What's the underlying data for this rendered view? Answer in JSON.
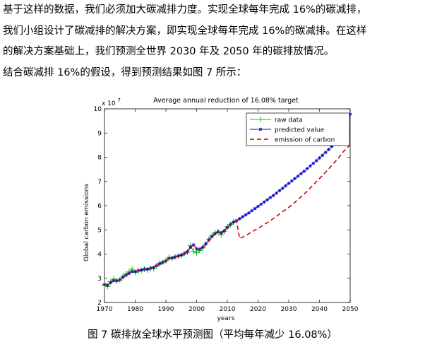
{
  "paragraph": {
    "lines": [
      "基于这样的数据，我们必须加大碳减排力度。实现全球每年完成 16%的碳减排，",
      "我们小组设计了碳减排的解决方案，即实现全球每年完成 16%的碳减排。在这样",
      "的解决方案基础上，我们预测全世界 2030 年及 2050 年的碳排放情况。",
      "结合碳减排 16%的假设，得到预测结果如图 7 所示："
    ]
  },
  "figure": {
    "caption": "图 7    碳排放全球水平预测图（平均每年减少 16.08%）"
  },
  "chart_data": {
    "type": "line",
    "title": "Average annual reduction of 16.08% target",
    "xlabel": "years",
    "ylabel": "Global carbon emissions",
    "y_multiplier_label": "x 10",
    "y_multiplier_exponent": "7",
    "xlim": [
      1970,
      2050
    ],
    "ylim": [
      2,
      10
    ],
    "xticks": [
      "1970",
      "1980",
      "1990",
      "2000",
      "2010",
      "2020",
      "2030",
      "2040",
      "2050"
    ],
    "yticks": [
      "2",
      "3",
      "4",
      "5",
      "6",
      "7",
      "8",
      "9",
      "10"
    ],
    "legend_position": "top-right",
    "series": [
      {
        "name": "raw data",
        "color": "#00cc00",
        "marker": "plus",
        "x": [
          1970,
          1971,
          1972,
          1973,
          1974,
          1975,
          1976,
          1977,
          1978,
          1979,
          1980,
          1981,
          1982,
          1983,
          1984,
          1985,
          1986,
          1987,
          1988,
          1989,
          1990,
          1991,
          1992,
          1993,
          1994,
          1995,
          1996,
          1997,
          1998,
          1999,
          2000,
          2001,
          2002,
          2003,
          2004,
          2005,
          2006,
          2007,
          2008,
          2009,
          2010,
          2011,
          2012
        ],
        "y": [
          2.72,
          2.66,
          2.86,
          2.97,
          2.88,
          2.93,
          3.09,
          3.18,
          3.26,
          3.38,
          3.24,
          3.3,
          3.32,
          3.38,
          3.34,
          3.4,
          3.4,
          3.52,
          3.62,
          3.66,
          3.72,
          3.86,
          3.82,
          3.88,
          3.92,
          3.94,
          4.02,
          4.08,
          4.35,
          4.12,
          4.05,
          4.15,
          4.26,
          4.42,
          4.62,
          4.77,
          4.88,
          4.92,
          4.79,
          4.94,
          5.12,
          5.22,
          5.32
        ]
      },
      {
        "name": "predicted value",
        "color": "#0000cc",
        "marker": "star",
        "x": [
          1970,
          1971,
          1972,
          1973,
          1974,
          1975,
          1976,
          1977,
          1978,
          1979,
          1980,
          1981,
          1982,
          1983,
          1984,
          1985,
          1986,
          1987,
          1988,
          1989,
          1990,
          1991,
          1992,
          1993,
          1994,
          1995,
          1996,
          1997,
          1998,
          1999,
          2000,
          2001,
          2002,
          2003,
          2004,
          2005,
          2006,
          2007,
          2008,
          2009,
          2010,
          2011,
          2012,
          2013,
          2014,
          2015,
          2016,
          2017,
          2018,
          2019,
          2020,
          2021,
          2022,
          2023,
          2024,
          2025,
          2026,
          2027,
          2028,
          2029,
          2030,
          2031,
          2032,
          2033,
          2034,
          2035,
          2036,
          2037,
          2038,
          2039,
          2040,
          2041,
          2042,
          2043,
          2044,
          2045,
          2046,
          2047,
          2048,
          2049,
          2050
        ],
        "y": [
          2.74,
          2.72,
          2.82,
          2.9,
          2.9,
          2.94,
          3.04,
          3.12,
          3.2,
          3.28,
          3.28,
          3.32,
          3.34,
          3.38,
          3.38,
          3.42,
          3.44,
          3.52,
          3.6,
          3.66,
          3.72,
          3.82,
          3.84,
          3.88,
          3.92,
          3.96,
          4.02,
          4.1,
          4.28,
          4.38,
          4.22,
          4.2,
          4.28,
          4.42,
          4.58,
          4.72,
          4.84,
          4.92,
          4.88,
          4.96,
          5.1,
          5.22,
          5.32,
          5.38,
          5.46,
          5.54,
          5.62,
          5.7,
          5.79,
          5.88,
          5.97,
          6.06,
          6.15,
          6.24,
          6.33,
          6.42,
          6.52,
          6.62,
          6.72,
          6.82,
          6.92,
          7.02,
          7.12,
          7.22,
          7.32,
          7.42,
          7.53,
          7.64,
          7.75,
          7.86,
          7.97,
          8.08,
          8.2,
          8.32,
          8.44,
          8.56,
          8.68,
          8.8,
          8.92,
          9.1,
          9.78
        ]
      },
      {
        "name": "emission of carbon",
        "color": "#cc0000",
        "marker": "dash",
        "x": [
          1970,
          1971,
          1972,
          1973,
          1974,
          1975,
          1976,
          1977,
          1978,
          1979,
          1980,
          1981,
          1982,
          1983,
          1984,
          1985,
          1986,
          1987,
          1988,
          1989,
          1990,
          1991,
          1992,
          1993,
          1994,
          1995,
          1996,
          1997,
          1998,
          1999,
          2000,
          2001,
          2002,
          2003,
          2004,
          2005,
          2006,
          2007,
          2008,
          2009,
          2010,
          2011,
          2012,
          2013,
          2014,
          2016,
          2018,
          2020,
          2022,
          2024,
          2026,
          2028,
          2030,
          2032,
          2034,
          2036,
          2038,
          2040,
          2042,
          2044,
          2046,
          2048,
          2050
        ],
        "y": [
          2.74,
          2.72,
          2.82,
          2.9,
          2.9,
          2.94,
          3.04,
          3.12,
          3.2,
          3.28,
          3.28,
          3.32,
          3.34,
          3.38,
          3.38,
          3.42,
          3.44,
          3.52,
          3.6,
          3.66,
          3.72,
          3.82,
          3.84,
          3.88,
          3.92,
          3.96,
          4.02,
          4.1,
          4.28,
          4.38,
          4.22,
          4.2,
          4.28,
          4.42,
          4.58,
          4.72,
          4.84,
          4.92,
          4.88,
          4.96,
          5.1,
          5.22,
          5.32,
          5.38,
          4.64,
          4.76,
          4.92,
          5.06,
          5.22,
          5.38,
          5.56,
          5.75,
          5.93,
          6.14,
          6.36,
          6.6,
          6.86,
          7.12,
          7.38,
          7.66,
          7.94,
          8.26,
          8.52
        ]
      }
    ]
  }
}
